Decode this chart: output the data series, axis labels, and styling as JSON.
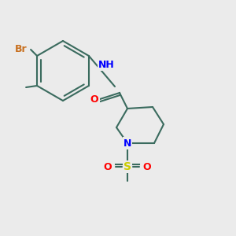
{
  "background_color": "#ebebeb",
  "bond_color": "#3a6b5e",
  "bond_lw": 1.5,
  "atom_colors": {
    "Br": "#c87020",
    "N": "#0000ff",
    "O": "#ff0000",
    "S": "#cccc00",
    "C": "#3a6b5e",
    "H": "#808080"
  },
  "font_size": 9,
  "fig_size": [
    3.0,
    3.0
  ],
  "dpi": 100
}
